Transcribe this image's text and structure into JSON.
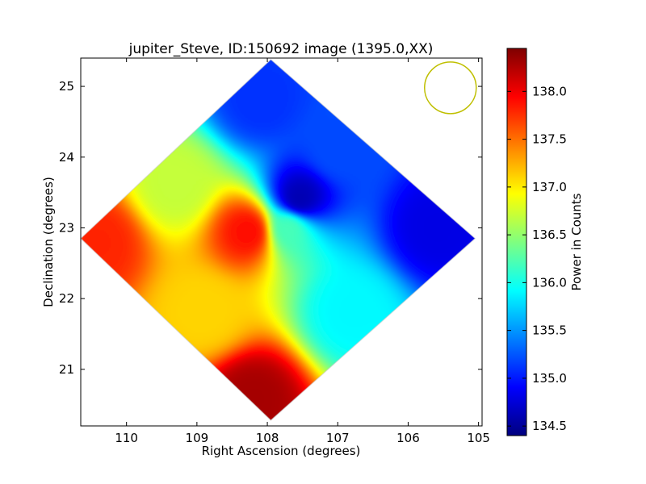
{
  "chart_data": {
    "type": "heatmap",
    "title": "jupiter_Steve, ID:150692 image (1395.0,XX)",
    "xlabel": "Right Ascension (degrees)",
    "ylabel": "Declination (degrees)",
    "xlim": [
      110.65,
      104.95
    ],
    "ylim": [
      20.2,
      25.4
    ],
    "x_ticks": [
      110,
      109,
      108,
      107,
      106,
      105
    ],
    "x_tick_labels": [
      "110",
      "109",
      "108",
      "107",
      "106",
      "105"
    ],
    "y_ticks": [
      21,
      22,
      23,
      24,
      25
    ],
    "y_tick_labels": [
      "21",
      "22",
      "23",
      "24",
      "25"
    ],
    "grid": false,
    "colormap": "jet",
    "colorbar": {
      "label": "Power in Counts",
      "range": [
        134.4,
        138.45
      ],
      "ticks": [
        134.5,
        135.0,
        135.5,
        136.0,
        136.5,
        137.0,
        137.5,
        138.0
      ],
      "tick_labels": [
        "134.5",
        "135.0",
        "135.5",
        "136.0",
        "136.5",
        "137.0",
        "137.5",
        "138.0"
      ]
    },
    "map_region": {
      "shape": "diamond",
      "vertices_ra_dec": [
        [
          107.95,
          25.38
        ],
        [
          105.05,
          22.85
        ],
        [
          107.95,
          20.28
        ],
        [
          110.65,
          22.85
        ]
      ]
    },
    "approx_values": [
      {
        "ra": 110.4,
        "dec": 22.8,
        "value": 137.8
      },
      {
        "ra": 108.2,
        "dec": 20.6,
        "value": 138.3
      },
      {
        "ra": 108.9,
        "dec": 21.8,
        "value": 137.1
      },
      {
        "ra": 109.3,
        "dec": 23.6,
        "value": 136.7
      },
      {
        "ra": 108.1,
        "dec": 24.8,
        "value": 135.1
      },
      {
        "ra": 107.0,
        "dec": 24.1,
        "value": 135.2
      },
      {
        "ra": 105.6,
        "dec": 23.0,
        "value": 134.8
      },
      {
        "ra": 106.8,
        "dec": 21.8,
        "value": 135.9
      },
      {
        "ra": 107.7,
        "dec": 23.0,
        "value": 136.2
      },
      {
        "ra": 107.55,
        "dec": 23.4,
        "value": 134.6
      },
      {
        "ra": 108.25,
        "dec": 22.95,
        "value": 137.9
      }
    ],
    "beam_marker": {
      "shape": "circle",
      "color": "#bfbf00",
      "ra": 105.4,
      "dec": 24.98
    }
  }
}
